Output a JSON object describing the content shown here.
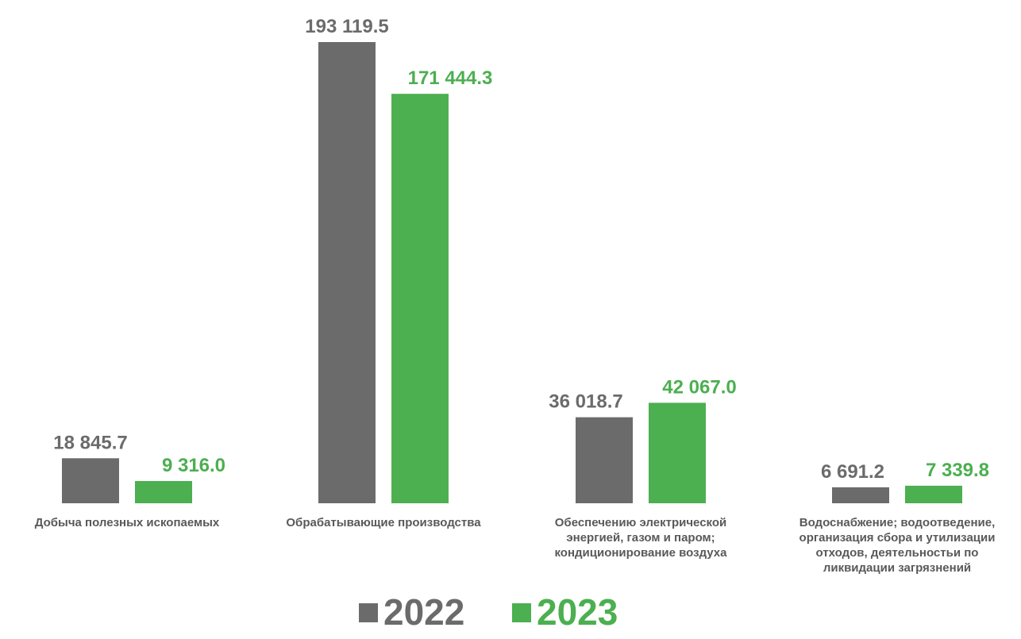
{
  "chart_data": {
    "type": "bar",
    "categories": [
      [
        "Добыча полезных ископаемых"
      ],
      [
        "Обрабатывающие производства"
      ],
      [
        "Обеспечению электрической",
        "энергией, газом и паром;",
        "кондиционирование воздуха"
      ],
      [
        "Водоснабжение; водоотведение,",
        "организация сбора и утилизации",
        "отходов, деятельностьи по",
        "ликвидации загрязнений"
      ]
    ],
    "series": [
      {
        "name": "2022",
        "color": "#6b6b6b",
        "values": [
          18845.7,
          193119.5,
          36018.7,
          6691.2
        ],
        "labels": [
          "18 845.7",
          "193 119.5",
          "36 018.7",
          "6 691.2"
        ]
      },
      {
        "name": "2023",
        "color": "#4caf50",
        "values": [
          9316.0,
          171444.3,
          42067.0,
          7339.8
        ],
        "labels": [
          "9 316.0",
          "171 444.3",
          "42 067.0",
          "7 339.8"
        ]
      }
    ],
    "ylim": [
      0,
      193119.5
    ],
    "grid": false,
    "legend": "bottom-center",
    "title": "",
    "xlabel": "",
    "ylabel": ""
  }
}
